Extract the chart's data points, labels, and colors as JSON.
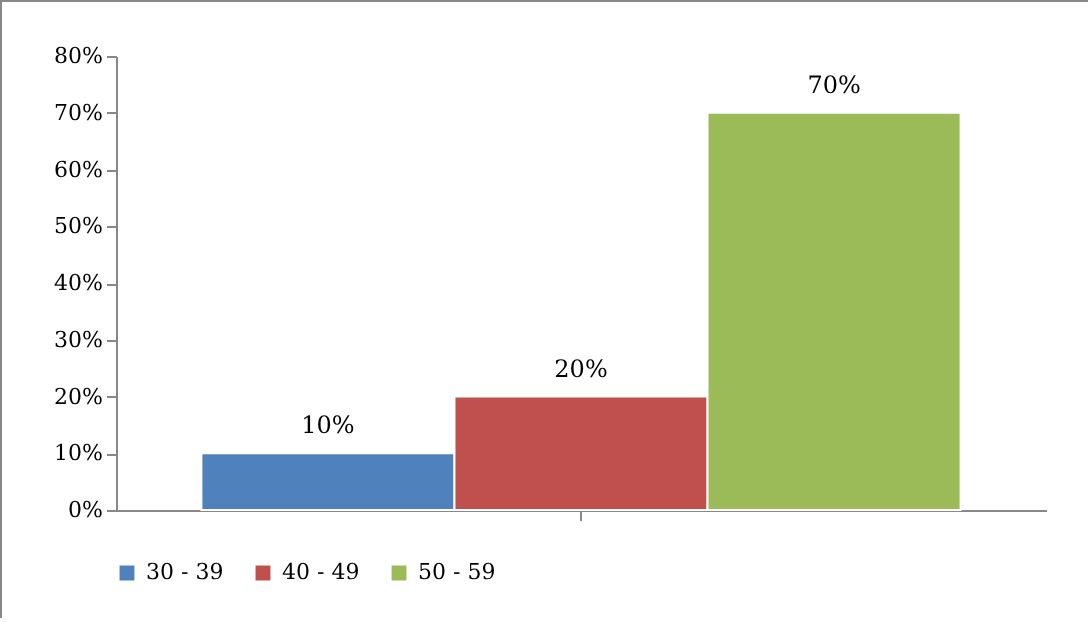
{
  "chart_data": {
    "type": "bar",
    "categories": [
      null
    ],
    "series": [
      {
        "name": "30 - 39",
        "color": "#4f81bd",
        "values": [
          10
        ],
        "value_labels": [
          "10%"
        ]
      },
      {
        "name": "40 - 49",
        "color": "#c0504d",
        "values": [
          20
        ],
        "value_labels": [
          "20%"
        ]
      },
      {
        "name": "50 - 59",
        "color": "#9bbb59",
        "values": [
          70
        ],
        "value_labels": [
          "70%"
        ]
      }
    ],
    "ylim": [
      0,
      80
    ],
    "yticks": [
      {
        "value": 0,
        "label": "0%"
      },
      {
        "value": 10,
        "label": "10%"
      },
      {
        "value": 20,
        "label": "20%"
      },
      {
        "value": 30,
        "label": "30%"
      },
      {
        "value": 40,
        "label": "40%"
      },
      {
        "value": 50,
        "label": "50%"
      },
      {
        "value": 60,
        "label": "60%"
      },
      {
        "value": 70,
        "label": "70%"
      },
      {
        "value": 80,
        "label": "80%"
      }
    ],
    "tick_labels": "y",
    "legend": "bottom"
  }
}
